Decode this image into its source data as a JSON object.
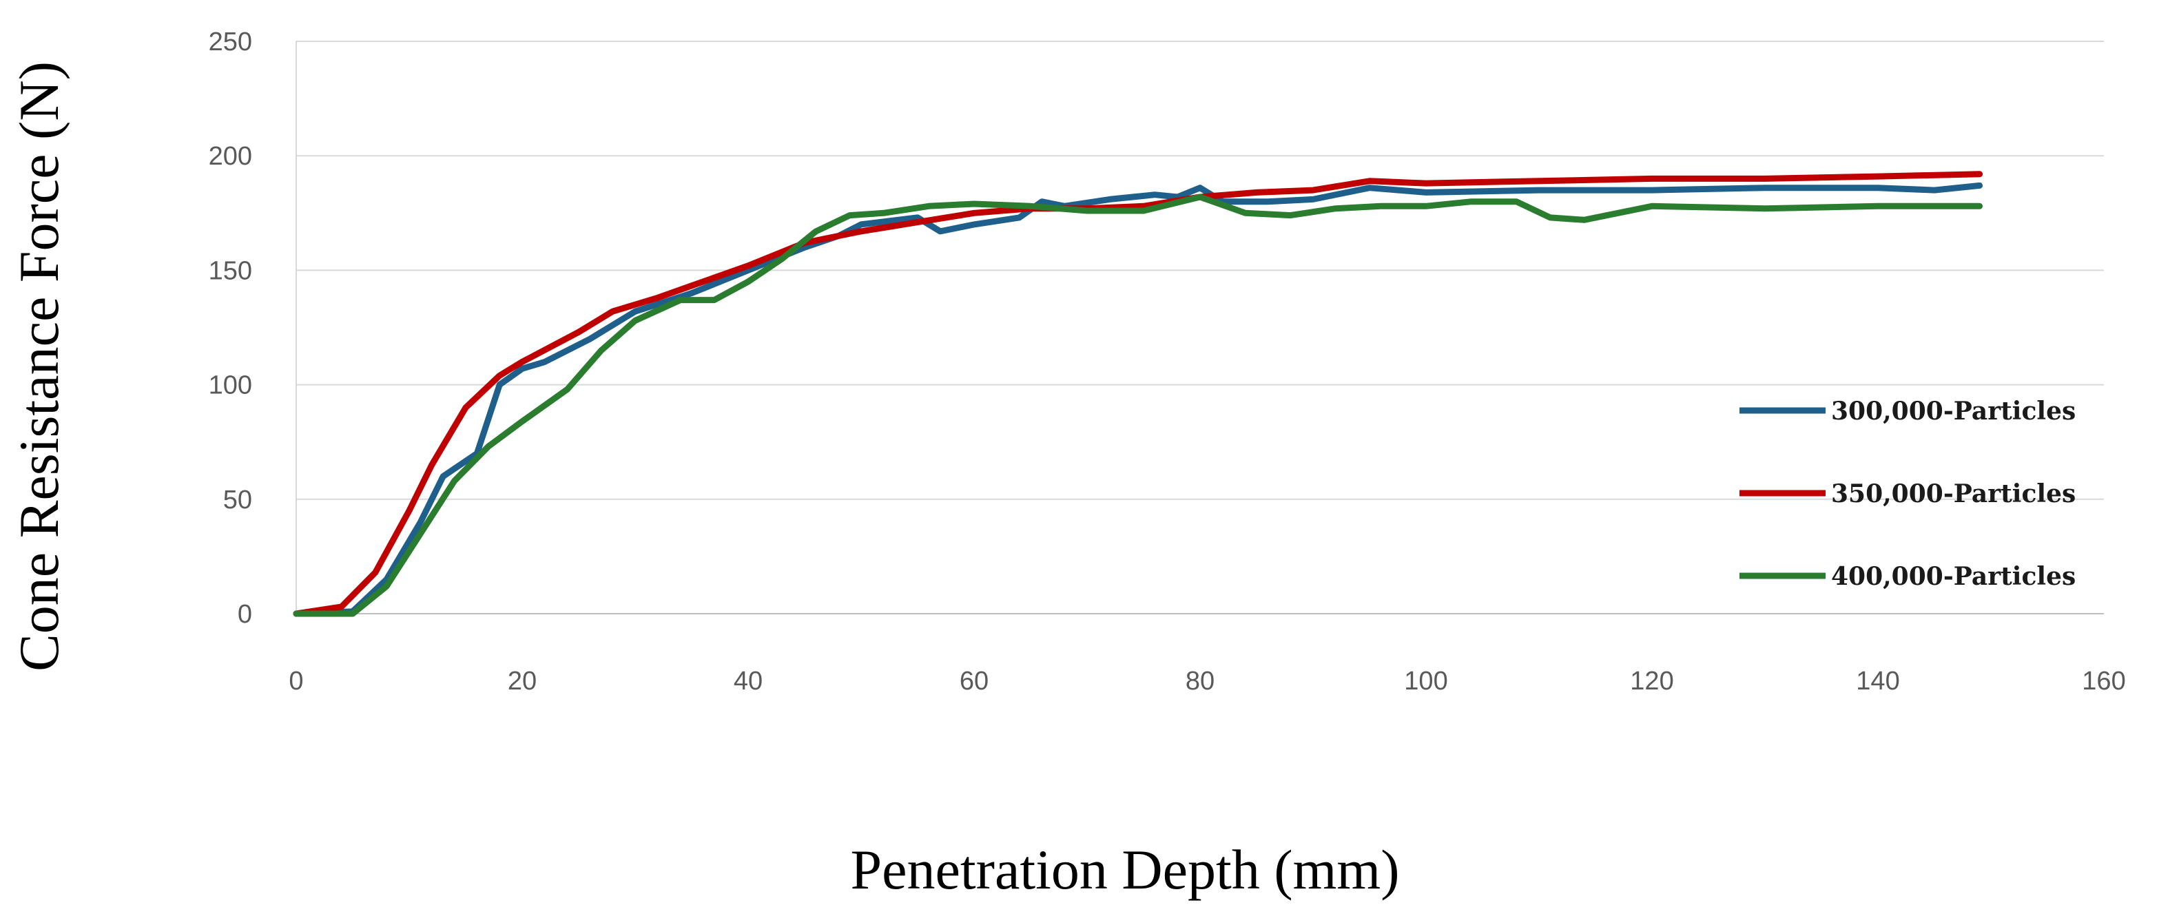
{
  "chart_data": {
    "type": "line",
    "title": "",
    "xlabel": "Penetration Depth (mm)",
    "ylabel": "Cone Resistance Force (N)",
    "xlim": [
      0,
      160
    ],
    "ylim": [
      0,
      250
    ],
    "xticks": [
      0,
      20,
      40,
      60,
      80,
      100,
      120,
      140,
      160
    ],
    "yticks": [
      0,
      50,
      100,
      150,
      200,
      250
    ],
    "grid": "horizontal",
    "legend_position": "right",
    "series": [
      {
        "name": "300,000-Particles",
        "color": "#1f5f8b",
        "x": [
          0,
          5,
          8,
          11,
          13,
          16,
          18,
          20,
          22,
          26,
          30,
          35,
          40,
          45,
          48,
          50,
          55,
          57,
          60,
          64,
          66,
          68,
          72,
          76,
          78,
          80,
          82,
          86,
          90,
          95,
          100,
          110,
          120,
          130,
          140,
          145,
          149
        ],
        "y": [
          0,
          1,
          15,
          40,
          60,
          70,
          100,
          107,
          110,
          120,
          132,
          140,
          150,
          160,
          165,
          170,
          173,
          167,
          170,
          173,
          180,
          178,
          181,
          183,
          182,
          186,
          180,
          180,
          181,
          186,
          184,
          185,
          185,
          186,
          186,
          185,
          187
        ]
      },
      {
        "name": "350,000-Particles",
        "color": "#c00000",
        "x": [
          0,
          4,
          7,
          10,
          12,
          15,
          18,
          20,
          25,
          28,
          32,
          36,
          40,
          45,
          50,
          55,
          60,
          65,
          70,
          75,
          80,
          85,
          90,
          95,
          100,
          110,
          120,
          130,
          140,
          149
        ],
        "y": [
          0,
          3,
          18,
          45,
          65,
          90,
          104,
          110,
          123,
          132,
          138,
          145,
          152,
          162,
          167,
          171,
          175,
          177,
          177,
          178,
          182,
          184,
          185,
          189,
          188,
          189,
          190,
          190,
          191,
          192
        ]
      },
      {
        "name": "400,000-Particles",
        "color": "#2a7d2e",
        "x": [
          0,
          5,
          8,
          11,
          14,
          17,
          20,
          24,
          27,
          30,
          34,
          37,
          40,
          43,
          46,
          49,
          52,
          56,
          60,
          65,
          70,
          75,
          80,
          84,
          88,
          92,
          96,
          100,
          104,
          108,
          111,
          114,
          117,
          120,
          130,
          140,
          149
        ],
        "y": [
          0,
          0,
          12,
          35,
          58,
          73,
          84,
          98,
          115,
          128,
          137,
          137,
          145,
          155,
          167,
          174,
          175,
          178,
          179,
          178,
          176,
          176,
          182,
          175,
          174,
          177,
          178,
          178,
          180,
          180,
          173,
          172,
          175,
          178,
          177,
          178,
          178
        ]
      }
    ]
  }
}
